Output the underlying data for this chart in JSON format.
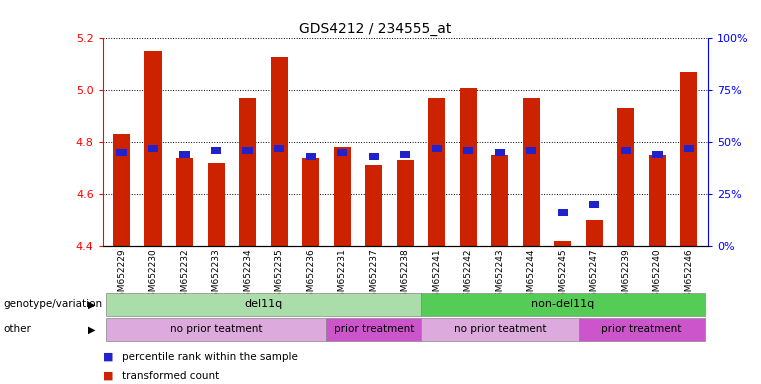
{
  "title": "GDS4212 / 234555_at",
  "samples": [
    "GSM652229",
    "GSM652230",
    "GSM652232",
    "GSM652233",
    "GSM652234",
    "GSM652235",
    "GSM652236",
    "GSM652231",
    "GSM652237",
    "GSM652238",
    "GSM652241",
    "GSM652242",
    "GSM652243",
    "GSM652244",
    "GSM652245",
    "GSM652247",
    "GSM652239",
    "GSM652240",
    "GSM652246"
  ],
  "red_values": [
    4.83,
    5.15,
    4.74,
    4.72,
    4.97,
    5.13,
    4.74,
    4.78,
    4.71,
    4.73,
    4.97,
    5.01,
    4.75,
    4.97,
    4.42,
    4.5,
    4.93,
    4.75,
    5.07
  ],
  "blue_values": [
    45,
    47,
    44,
    46,
    46,
    47,
    43,
    45,
    43,
    44,
    47,
    46,
    45,
    46,
    16,
    20,
    46,
    44,
    47
  ],
  "ylim_left": [
    4.4,
    5.2
  ],
  "ylim_right": [
    0,
    100
  ],
  "yticks_left": [
    4.4,
    4.6,
    4.8,
    5.0,
    5.2
  ],
  "yticks_right": [
    0,
    25,
    50,
    75,
    100
  ],
  "ytick_labels_right": [
    "0%",
    "25%",
    "50%",
    "75%",
    "100%"
  ],
  "bar_color": "#cc2200",
  "dot_color": "#2222cc",
  "baseline": 4.4,
  "genotype_groups": [
    {
      "label": "del11q",
      "start": 0,
      "end": 10,
      "color": "#aaddaa"
    },
    {
      "label": "non-del11q",
      "start": 10,
      "end": 19,
      "color": "#55cc55"
    }
  ],
  "treatment_groups": [
    {
      "label": "no prior teatment",
      "start": 0,
      "end": 7,
      "color": "#ddaadd"
    },
    {
      "label": "prior treatment",
      "start": 7,
      "end": 10,
      "color": "#cc55cc"
    },
    {
      "label": "no prior teatment",
      "start": 10,
      "end": 15,
      "color": "#ddaadd"
    },
    {
      "label": "prior treatment",
      "start": 15,
      "end": 19,
      "color": "#cc55cc"
    }
  ],
  "legend_items": [
    {
      "label": "transformed count",
      "color": "#cc2200"
    },
    {
      "label": "percentile rank within the sample",
      "color": "#2222cc"
    }
  ],
  "grid_color": "black",
  "background_color": "#ffffff",
  "label_area_bg": "#dddddd",
  "geno_label": "genotype/variation",
  "treat_label": "other"
}
